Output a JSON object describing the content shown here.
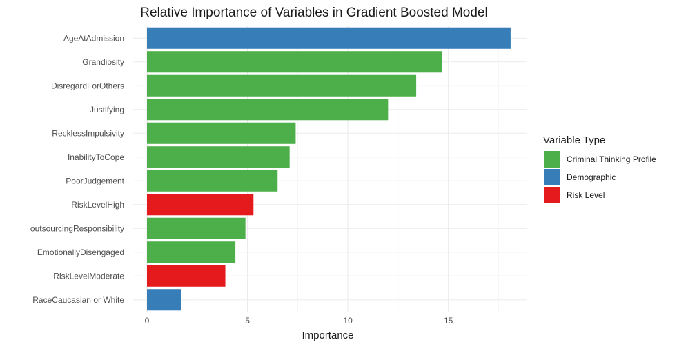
{
  "chart_data": {
    "type": "bar",
    "orientation": "horizontal",
    "title": "Relative Importance of Variables in Gradient Boosted Model",
    "xlabel": "Importance",
    "ylabel": "",
    "xlim": [
      0,
      18.1
    ],
    "xticks": [
      0,
      5,
      10,
      15
    ],
    "grid": true,
    "legend_position": "right",
    "legend": {
      "title": "Variable Type",
      "entries": [
        {
          "name": "Criminal Thinking Profile",
          "color": "#4DAF4A"
        },
        {
          "name": "Demographic",
          "color": "#377EB8"
        },
        {
          "name": "Risk Level",
          "color": "#E41A1C"
        }
      ]
    },
    "bars": [
      {
        "label": "AgeAtAdmission",
        "value": 18.1,
        "type": "Demographic"
      },
      {
        "label": "Grandiosity",
        "value": 14.7,
        "type": "Criminal Thinking Profile"
      },
      {
        "label": "DisregardForOthers",
        "value": 13.4,
        "type": "Criminal Thinking Profile"
      },
      {
        "label": "Justifying",
        "value": 12.0,
        "type": "Criminal Thinking Profile"
      },
      {
        "label": "RecklessImpulsivity",
        "value": 7.4,
        "type": "Criminal Thinking Profile"
      },
      {
        "label": "InabilityToCope",
        "value": 7.1,
        "type": "Criminal Thinking Profile"
      },
      {
        "label": "PoorJudgement",
        "value": 6.5,
        "type": "Criminal Thinking Profile"
      },
      {
        "label": "RiskLevelHigh",
        "value": 5.3,
        "type": "Risk Level"
      },
      {
        "label": "outsourcingResponsibility",
        "value": 4.9,
        "type": "Criminal Thinking Profile"
      },
      {
        "label": "EmotionallyDisengaged",
        "value": 4.4,
        "type": "Criminal Thinking Profile"
      },
      {
        "label": "RiskLevelModerate",
        "value": 3.9,
        "type": "Risk Level"
      },
      {
        "label": "RaceCaucasian or White",
        "value": 1.7,
        "type": "Demographic"
      }
    ]
  }
}
